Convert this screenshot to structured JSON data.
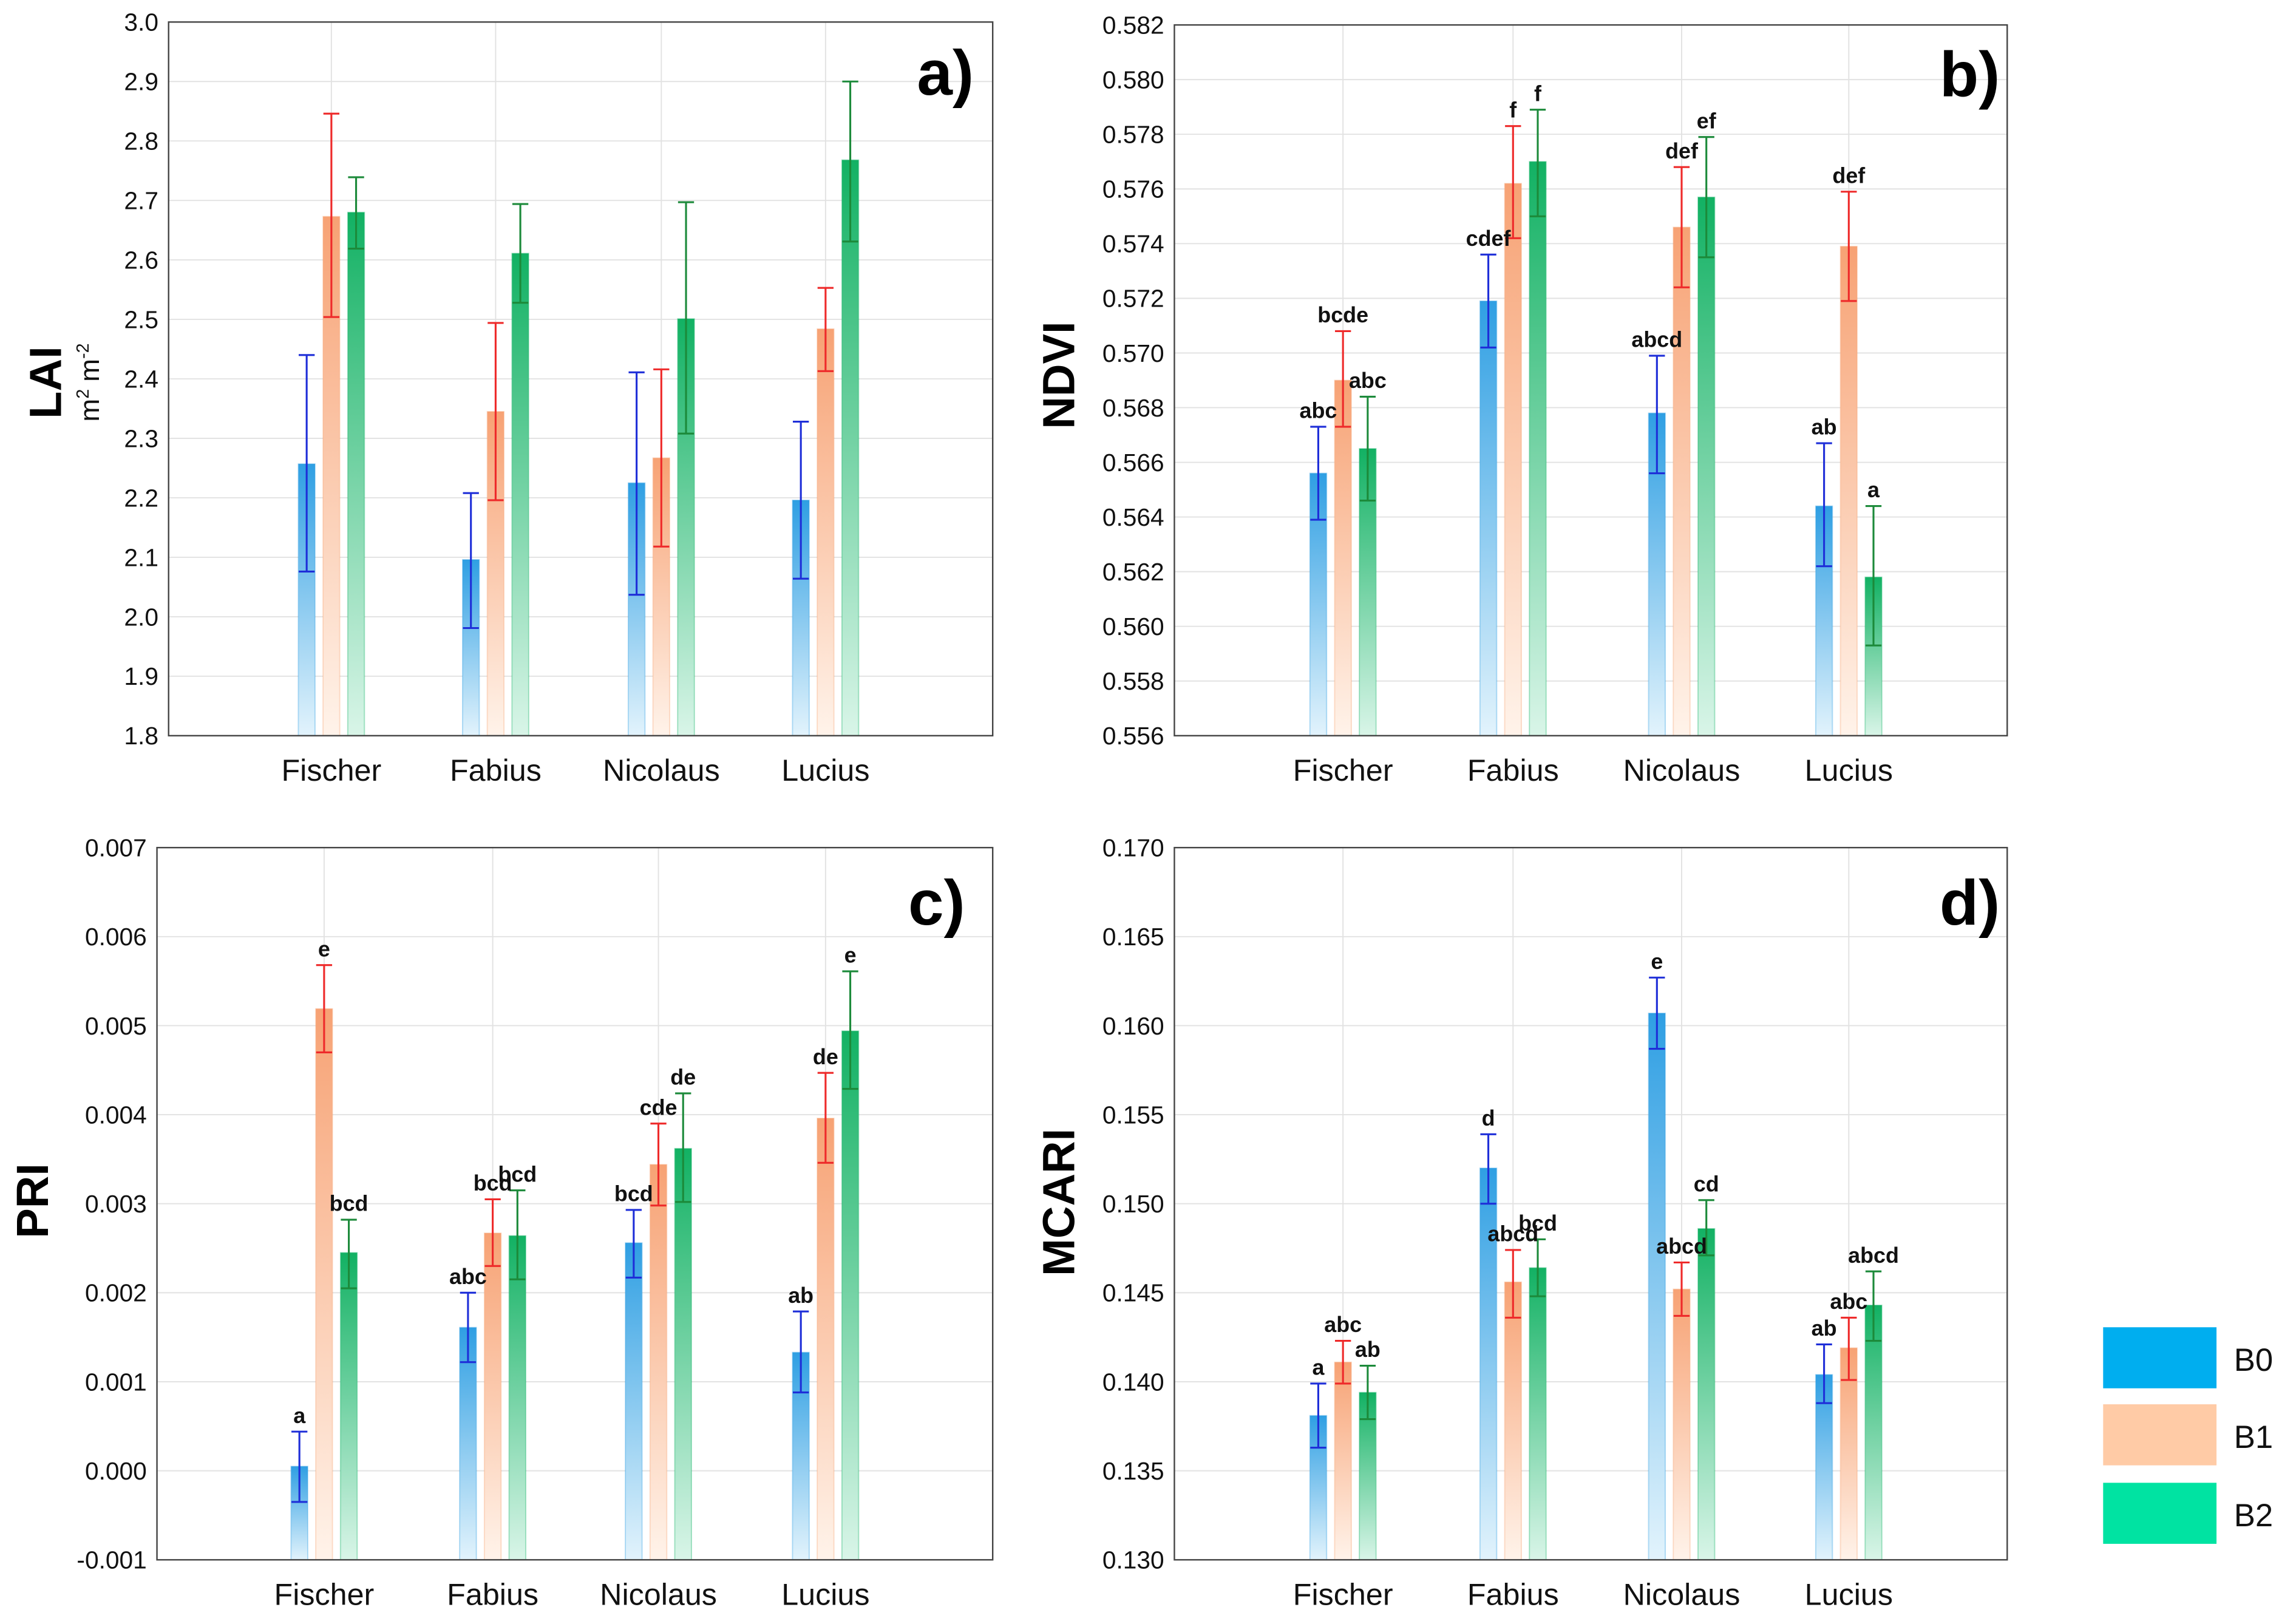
{
  "chart_data": [
    {
      "type": "bar",
      "panel_label": "a)",
      "ylabel": "LAI",
      "ylabel_unit": {
        "base1": "m",
        "sup1": "2",
        "base2": "m",
        "sup2": "-2"
      },
      "categories": [
        "Fischer",
        "Fabius",
        "Nicolaus",
        "Lucius"
      ],
      "ylim": [
        1.8,
        3.0
      ],
      "yticks": [
        "3.0",
        "2.9",
        "2.8",
        "2.7",
        "2.6",
        "2.5",
        "2.4",
        "2.3",
        "2.2",
        "2.1",
        "2.0",
        "1.9",
        "1.8"
      ],
      "grid": true,
      "series": [
        {
          "values": [
            2.257,
            2.096,
            2.225,
            2.196
          ],
          "err_low": [
            2.076,
            1.981,
            2.037,
            2.064
          ],
          "err_high": [
            2.44,
            2.208,
            2.411,
            2.328
          ]
        },
        {
          "values": [
            2.673,
            2.345,
            2.267,
            2.484
          ],
          "err_low": [
            2.504,
            2.196,
            2.118,
            2.413
          ],
          "err_high": [
            2.846,
            2.494,
            2.416,
            2.553
          ]
        },
        {
          "values": [
            2.68,
            2.611,
            2.501,
            2.768
          ],
          "err_low": [
            2.619,
            2.528,
            2.308,
            2.631
          ],
          "err_high": [
            2.739,
            2.694,
            2.697,
            2.9
          ]
        }
      ]
    },
    {
      "type": "bar",
      "panel_label": "b)",
      "ylabel": "NDVI",
      "categories": [
        "Fischer",
        "Fabius",
        "Nicolaus",
        "Lucius"
      ],
      "ylim": [
        0.556,
        0.582
      ],
      "yticks": [
        "0.582",
        "0.580",
        "0.578",
        "0.576",
        "0.574",
        "0.572",
        "0.570",
        "0.568",
        "0.566",
        "0.564",
        "0.562",
        "0.560",
        "0.558",
        "0.556"
      ],
      "grid": true,
      "series": [
        {
          "values": [
            0.5656,
            0.5719,
            0.5678,
            0.5644
          ],
          "err_low": [
            0.5639,
            0.5702,
            0.5656,
            0.5622
          ],
          "err_high": [
            0.5673,
            0.5736,
            0.5699,
            0.5667
          ],
          "letters": [
            "abc",
            "cdef",
            "abcd",
            "ab"
          ]
        },
        {
          "values": [
            0.569,
            0.5762,
            0.5746,
            0.5739
          ],
          "err_low": [
            0.5673,
            0.5742,
            0.5724,
            0.5719
          ],
          "err_high": [
            0.5708,
            0.5783,
            0.5768,
            0.5759
          ],
          "letters": [
            "bcde",
            "f",
            "def",
            "def"
          ]
        },
        {
          "values": [
            0.5665,
            0.577,
            0.5757,
            0.5618
          ],
          "err_low": [
            0.5646,
            0.575,
            0.5735,
            0.5593
          ],
          "err_high": [
            0.5684,
            0.5789,
            0.5779,
            0.5644
          ],
          "letters": [
            "abc",
            "f",
            "ef",
            "a"
          ]
        }
      ]
    },
    {
      "type": "bar",
      "panel_label": "c)",
      "ylabel": "PRI",
      "categories": [
        "Fischer",
        "Fabius",
        "Nicolaus",
        "Lucius"
      ],
      "ylim": [
        -0.001,
        0.007
      ],
      "yticks": [
        "0.007",
        "0.006",
        "0.005",
        "0.004",
        "0.003",
        "0.002",
        "0.001",
        "0.000",
        "-0.001"
      ],
      "grid": true,
      "series": [
        {
          "values": [
            5e-05,
            0.00161,
            0.00256,
            0.00133
          ],
          "err_low": [
            -0.00035,
            0.00122,
            0.00217,
            0.00088
          ],
          "err_high": [
            0.00044,
            0.002,
            0.00293,
            0.00179
          ],
          "letters": [
            "a",
            "abc",
            "bcd",
            "ab"
          ]
        },
        {
          "values": [
            0.00519,
            0.00267,
            0.00344,
            0.00396
          ],
          "err_low": [
            0.0047,
            0.0023,
            0.00298,
            0.00346
          ],
          "err_high": [
            0.00568,
            0.00305,
            0.0039,
            0.00447
          ],
          "letters": [
            "e",
            "bcd",
            "cde",
            "de"
          ]
        },
        {
          "values": [
            0.00245,
            0.00264,
            0.00362,
            0.00494
          ],
          "err_low": [
            0.00205,
            0.00215,
            0.00302,
            0.00429
          ],
          "err_high": [
            0.00282,
            0.00315,
            0.00424,
            0.00561
          ],
          "letters": [
            "bcd",
            "bcd",
            "de",
            "e"
          ]
        }
      ]
    },
    {
      "type": "bar",
      "panel_label": "d)",
      "ylabel": "MCARI",
      "categories": [
        "Fischer",
        "Fabius",
        "Nicolaus",
        "Lucius"
      ],
      "ylim": [
        0.13,
        0.17
      ],
      "yticks": [
        "0.170",
        "0.165",
        "0.160",
        "0.155",
        "0.150",
        "0.145",
        "0.140",
        "0.135",
        "0.130"
      ],
      "grid": true,
      "series": [
        {
          "values": [
            0.1381,
            0.152,
            0.1607,
            0.1404
          ],
          "err_low": [
            0.1363,
            0.15,
            0.1587,
            0.1388
          ],
          "err_high": [
            0.1399,
            0.1539,
            0.1627,
            0.1421
          ],
          "letters": [
            "a",
            "d",
            "e",
            "ab"
          ]
        },
        {
          "values": [
            0.1411,
            0.1456,
            0.1452,
            0.1419
          ],
          "err_low": [
            0.1399,
            0.1436,
            0.1437,
            0.1401
          ],
          "err_high": [
            0.1423,
            0.1474,
            0.1467,
            0.1436
          ],
          "letters": [
            "abc",
            "abcd",
            "abcd",
            "abc"
          ]
        },
        {
          "values": [
            0.1394,
            0.1464,
            0.1486,
            0.1443
          ],
          "err_low": [
            0.1379,
            0.1448,
            0.1471,
            0.1423
          ],
          "err_high": [
            0.1409,
            0.148,
            0.1502,
            0.1462
          ],
          "letters": [
            "ab",
            "bcd",
            "cd",
            "abcd"
          ]
        }
      ]
    }
  ],
  "legend": {
    "items": [
      {
        "name": "B0",
        "color": "#00AEEF",
        "bar_top": "#2F9FE3",
        "bar_bottom": "#E2F3FC",
        "error_color": "#1E2ED8"
      },
      {
        "name": "B1",
        "color": "#FFCBA6",
        "bar_top": "#F7A274",
        "bar_bottom": "#FFF3EA",
        "error_color": "#EE2A2A"
      },
      {
        "name": "B2",
        "color": "#00E3A2",
        "bar_top": "#12B163",
        "bar_bottom": "#D9F5E8",
        "error_color": "#1C8A3A"
      }
    ]
  }
}
